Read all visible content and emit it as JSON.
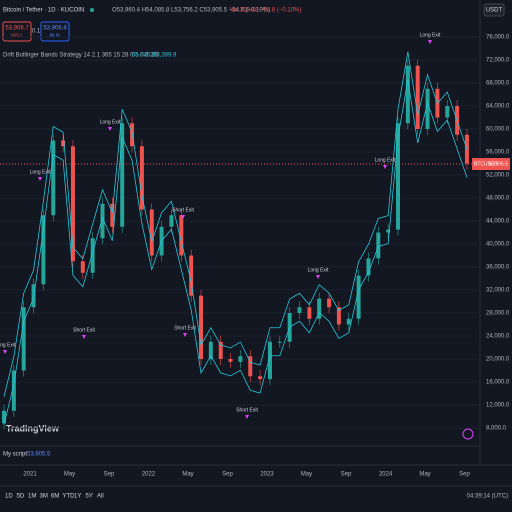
{
  "header": {
    "symbol": "Bitcoin / Tether · 1D · KUCOIN",
    "ohlc": "O53,960.4 H54,085.8 L53,756.2 C53,905.5 −54.8 (−0.10%)",
    "volume": "Vol 228.48 −54.8 (−0.10%)",
    "currency": "USDT"
  },
  "trade": {
    "sell_price": "53,906.7",
    "sell": "SELL",
    "spread": "0.1",
    "buy_price": "53,906.8",
    "buy": "BUY"
  },
  "strategy": {
    "name": "Drift Bollinger Bands Strategy 14 2.1 365 15 28 0.5 0.5 2 9",
    "upper": "65,046.8",
    "lower": "53,399.9"
  },
  "price_tag": {
    "symbol": "BTCUSDT",
    "price": "53,905.5"
  },
  "chart": {
    "ylim": [
      8000,
      76000
    ],
    "yticks": [
      {
        "value": 8000,
        "label": "8,000.0"
      },
      {
        "value": 12000,
        "label": "12,000.0"
      },
      {
        "value": 16000,
        "label": "16,000.0"
      },
      {
        "value": 20000,
        "label": "20,000.0"
      },
      {
        "value": 24000,
        "label": "24,000.0"
      },
      {
        "value": 28000,
        "label": "28,000.0"
      },
      {
        "value": 32000,
        "label": "32,000.0"
      },
      {
        "value": 36000,
        "label": "36,000.0"
      },
      {
        "value": 40000,
        "label": "40,000.0"
      },
      {
        "value": 44000,
        "label": "44,000.0"
      },
      {
        "value": 48000,
        "label": "48,000.0"
      },
      {
        "value": 52000,
        "label": "52,000.0"
      },
      {
        "value": 56000,
        "label": "56,000.0"
      },
      {
        "value": 60000,
        "label": "60,000.0"
      },
      {
        "value": 64000,
        "label": "64,000.0"
      },
      {
        "value": 68000,
        "label": "68,000.0"
      },
      {
        "value": 72000,
        "label": "72,000.0"
      },
      {
        "value": 76000,
        "label": "76,000.0"
      }
    ],
    "time_labels": [
      "2021",
      "May",
      "Sep",
      "2022",
      "May",
      "Sep",
      "2023",
      "May",
      "Sep",
      "2024",
      "May",
      "Sep"
    ],
    "closes": [
      11000,
      18000,
      29000,
      33000,
      45000,
      58000,
      57000,
      37000,
      35000,
      41000,
      47000,
      43000,
      61000,
      57000,
      46000,
      38000,
      43000,
      45000,
      38000,
      31000,
      20000,
      23000,
      20000,
      19500,
      20500,
      17000,
      16500,
      23000,
      23000,
      28000,
      29000,
      27000,
      30500,
      29000,
      26000,
      27000,
      34500,
      37500,
      42000,
      42500,
      61000,
      71000,
      60000,
      67000,
      62000,
      64000,
      59000,
      54000
    ],
    "annotations": [
      "Long Exit",
      "Long Exit",
      "Short Exit",
      "Long Exit",
      "Short Exit",
      "Short Exit",
      "Long Exit",
      "Short Exit",
      "Long Exit",
      "Long Exit"
    ]
  },
  "script_pane": {
    "name": "My script",
    "value": "53,905.5"
  },
  "logo": "TradingView",
  "toolbar": {
    "ranges": [
      "1D",
      "5D",
      "1M",
      "3M",
      "6M",
      "YTD",
      "1Y",
      "5Y",
      "All"
    ],
    "clock": "04:39:14 (UTC)"
  }
}
